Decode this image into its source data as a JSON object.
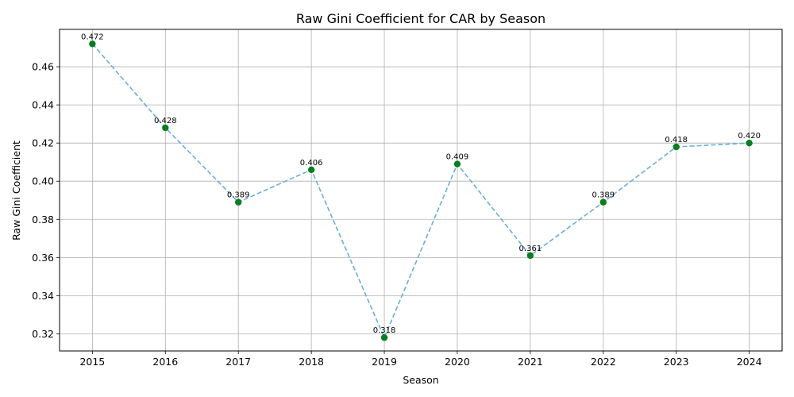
{
  "chart_data": {
    "type": "line",
    "title": "Raw Gini Coefficient for CAR by Season",
    "xlabel": "Season",
    "ylabel": "Raw Gini Coefficient",
    "x": [
      2015,
      2016,
      2017,
      2018,
      2019,
      2020,
      2021,
      2022,
      2023,
      2024
    ],
    "x_tick_labels": [
      "2015",
      "2016",
      "2017",
      "2018",
      "2019",
      "2020",
      "2021",
      "2022",
      "2023",
      "2024"
    ],
    "y_ticks": [
      0.32,
      0.34,
      0.36,
      0.38,
      0.4,
      0.42,
      0.44,
      0.46
    ],
    "y_tick_labels": [
      "0.32",
      "0.34",
      "0.36",
      "0.38",
      "0.40",
      "0.42",
      "0.44",
      "0.46"
    ],
    "ylim": [
      0.311,
      0.4796
    ],
    "xlim": [
      2014.55,
      2024.45
    ],
    "grid": true,
    "series": [
      {
        "values": [
          0.472,
          0.428,
          0.389,
          0.406,
          0.318,
          0.409,
          0.361,
          0.389,
          0.418,
          0.42
        ],
        "data_labels": [
          "0.472",
          "0.428",
          "0.389",
          "0.406",
          "0.318",
          "0.409",
          "0.361",
          "0.389",
          "0.418",
          "0.420"
        ],
        "line_color": "#6baed6",
        "marker_color": "#0a7d1e",
        "line_style": "dashed"
      }
    ]
  }
}
